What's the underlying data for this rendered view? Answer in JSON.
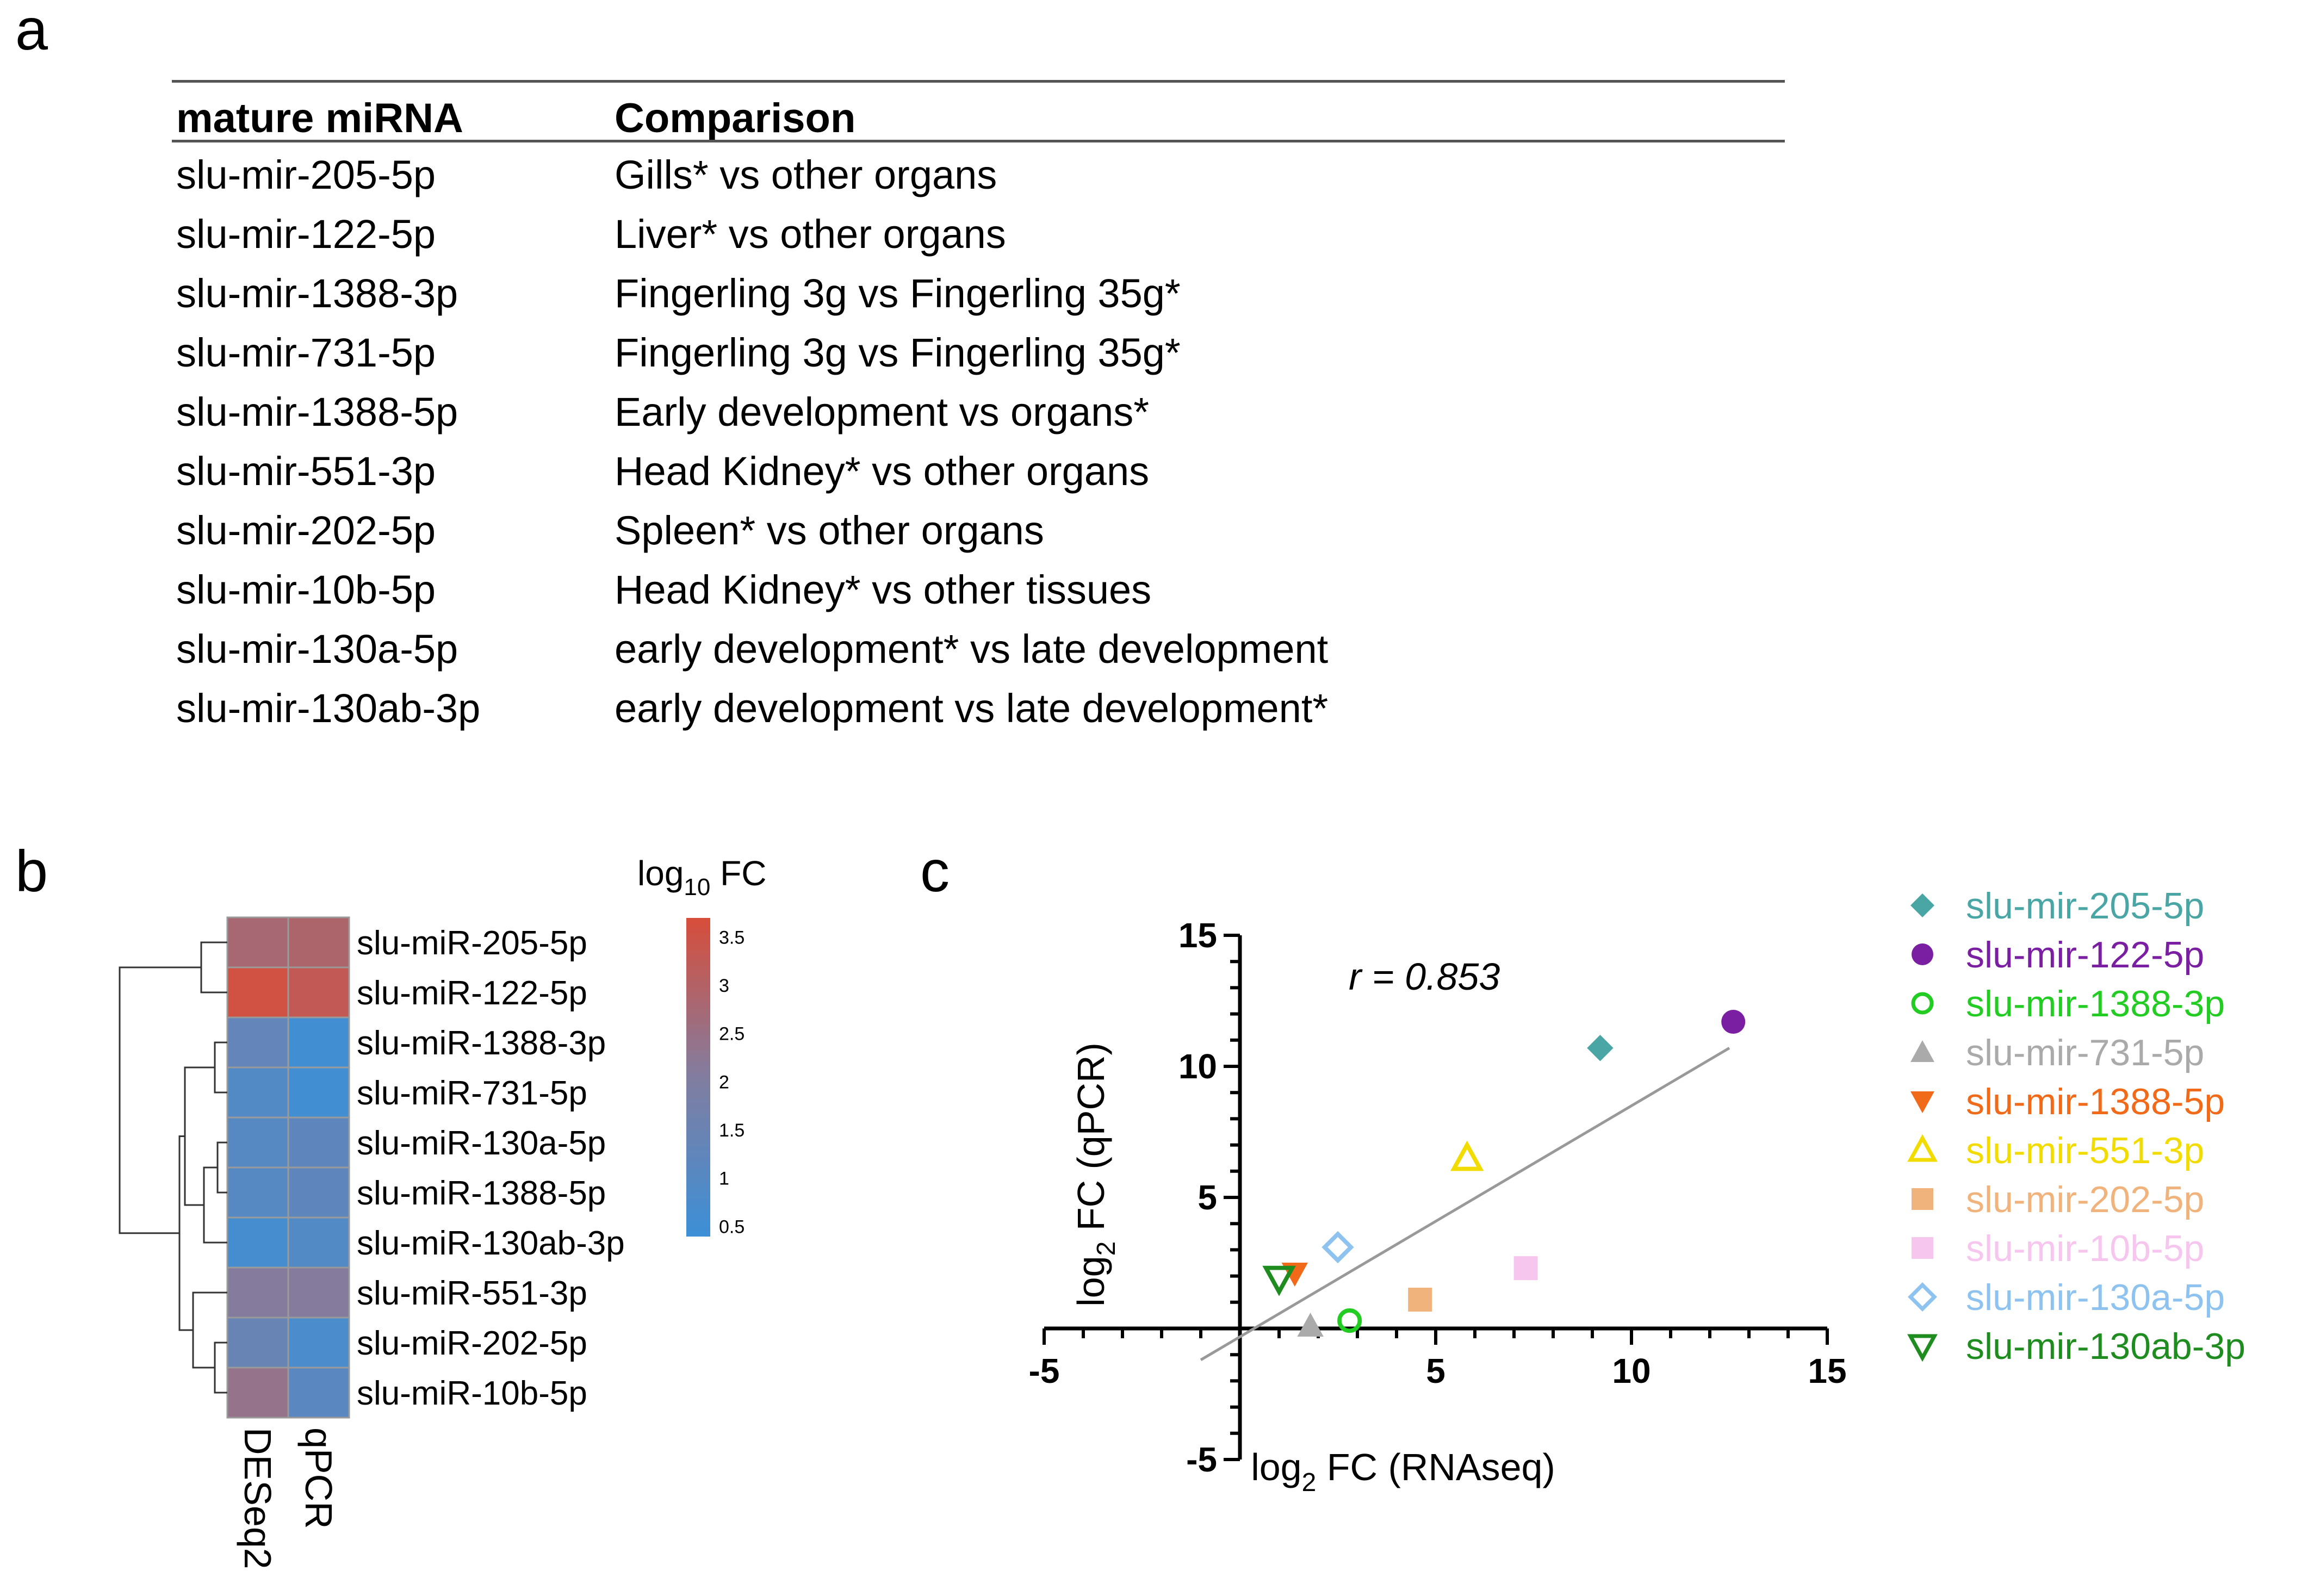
{
  "panels": {
    "a": "a",
    "b": "b",
    "c": "c"
  },
  "table": {
    "headers": [
      "mature miRNA",
      "Comparison"
    ],
    "rows": [
      [
        "slu-mir-205-5p",
        "Gills* vs other organs"
      ],
      [
        "slu-mir-122-5p",
        "Liver* vs other organs"
      ],
      [
        "slu-mir-1388-3p",
        "Fingerling  3g vs Fingerling  35g*"
      ],
      [
        "slu-mir-731-5p",
        "Fingerling  3g vs Fingerling  35g*"
      ],
      [
        "slu-mir-1388-5p",
        "Early development  vs organs*"
      ],
      [
        "slu-mir-551-3p",
        "Head Kidney*  vs other organs"
      ],
      [
        "slu-mir-202-5p",
        "Spleen*  vs other organs"
      ],
      [
        "slu-mir-10b-5p",
        "Head Kidney*  vs other tissues"
      ],
      [
        "slu-mir-130a-5p",
        "early development*  vs late development"
      ],
      [
        "slu-mir-130ab-3p",
        "early development  vs late development*"
      ]
    ]
  },
  "chart_data": [
    {
      "type": "heatmap",
      "title": "log10 FC",
      "title_base": "log",
      "title_sub": "10",
      "title_rest": " FC",
      "rows": [
        "slu-miR-205-5p",
        "slu-miR-122-5p",
        "slu-miR-1388-3p",
        "slu-miR-731-5p",
        "slu-miR-130a-5p",
        "slu-miR-1388-5p",
        "slu-miR-130ab-3p",
        "slu-miR-551-3p",
        "slu-miR-202-5p",
        "slu-miR-10b-5p"
      ],
      "columns": [
        "DESeq2",
        "qPCR"
      ],
      "values": [
        [
          2.8,
          2.9
        ],
        [
          3.6,
          3.3
        ],
        [
          1.3,
          0.5
        ],
        [
          0.9,
          0.5
        ],
        [
          1.0,
          1.2
        ],
        [
          1.0,
          1.2
        ],
        [
          0.6,
          0.9
        ],
        [
          2.1,
          2.1
        ],
        [
          1.4,
          0.7
        ],
        [
          2.4,
          1.1
        ]
      ],
      "colorbar": {
        "ticks": [
          "3.5",
          "3",
          "2.5",
          "2",
          "1.5",
          "1",
          "0.5"
        ],
        "range": [
          0.4,
          3.7
        ],
        "low_color": "#3d8fd6",
        "high_color": "#d64e3c"
      },
      "dendrogram": true
    },
    {
      "type": "scatter",
      "xlabel": "log2 FC (RNAseq)",
      "ylabel": "log2 FC (qPCR)",
      "xlabel_parts": [
        "log",
        "2",
        " FC (RNAseq)"
      ],
      "ylabel_parts": [
        "log",
        "2",
        " FC (qPCR)"
      ],
      "xlim": [
        -5,
        15
      ],
      "ylim": [
        -5,
        15
      ],
      "xticks": [
        "-5",
        "5",
        "10",
        "15"
      ],
      "yticks": [
        "-5",
        "5",
        "10",
        "15"
      ],
      "annotation": "r = 0.853",
      "regression": {
        "x1": -1,
        "y1": -1.2,
        "x2": 12.5,
        "y2": 10.7,
        "color": "#999999"
      },
      "series": [
        {
          "name": "slu-mir-205-5p",
          "x": 9.2,
          "y": 10.7,
          "marker": "diamond",
          "color": "#4aa6a4"
        },
        {
          "name": "slu-mir-122-5p",
          "x": 12.6,
          "y": 11.7,
          "marker": "circle",
          "color": "#7a1fa2"
        },
        {
          "name": "slu-mir-1388-3p",
          "x": 2.8,
          "y": 0.3,
          "marker": "circle-open",
          "color": "#22cc22"
        },
        {
          "name": "slu-mir-731-5p",
          "x": 1.8,
          "y": 0.1,
          "marker": "triangle",
          "color": "#aaaaaa"
        },
        {
          "name": "slu-mir-1388-5p",
          "x": 1.4,
          "y": 2.1,
          "marker": "triangle-down",
          "color": "#f06a1a"
        },
        {
          "name": "slu-mir-551-3p",
          "x": 5.8,
          "y": 6.5,
          "marker": "triangle-open",
          "color": "#f2dc00"
        },
        {
          "name": "slu-mir-202-5p",
          "x": 4.6,
          "y": 1.1,
          "marker": "square",
          "color": "#f0b37c"
        },
        {
          "name": "slu-mir-10b-5p",
          "x": 7.3,
          "y": 2.3,
          "marker": "square",
          "color": "#f7c6ee"
        },
        {
          "name": "slu-mir-130a-5p",
          "x": 2.5,
          "y": 3.1,
          "marker": "diamond-open",
          "color": "#8ec3ef"
        },
        {
          "name": "slu-mir-130ab-3p",
          "x": 1.0,
          "y": 1.9,
          "marker": "triangle-down-open",
          "color": "#1f8c1f"
        }
      ],
      "legend_position": "right"
    }
  ]
}
